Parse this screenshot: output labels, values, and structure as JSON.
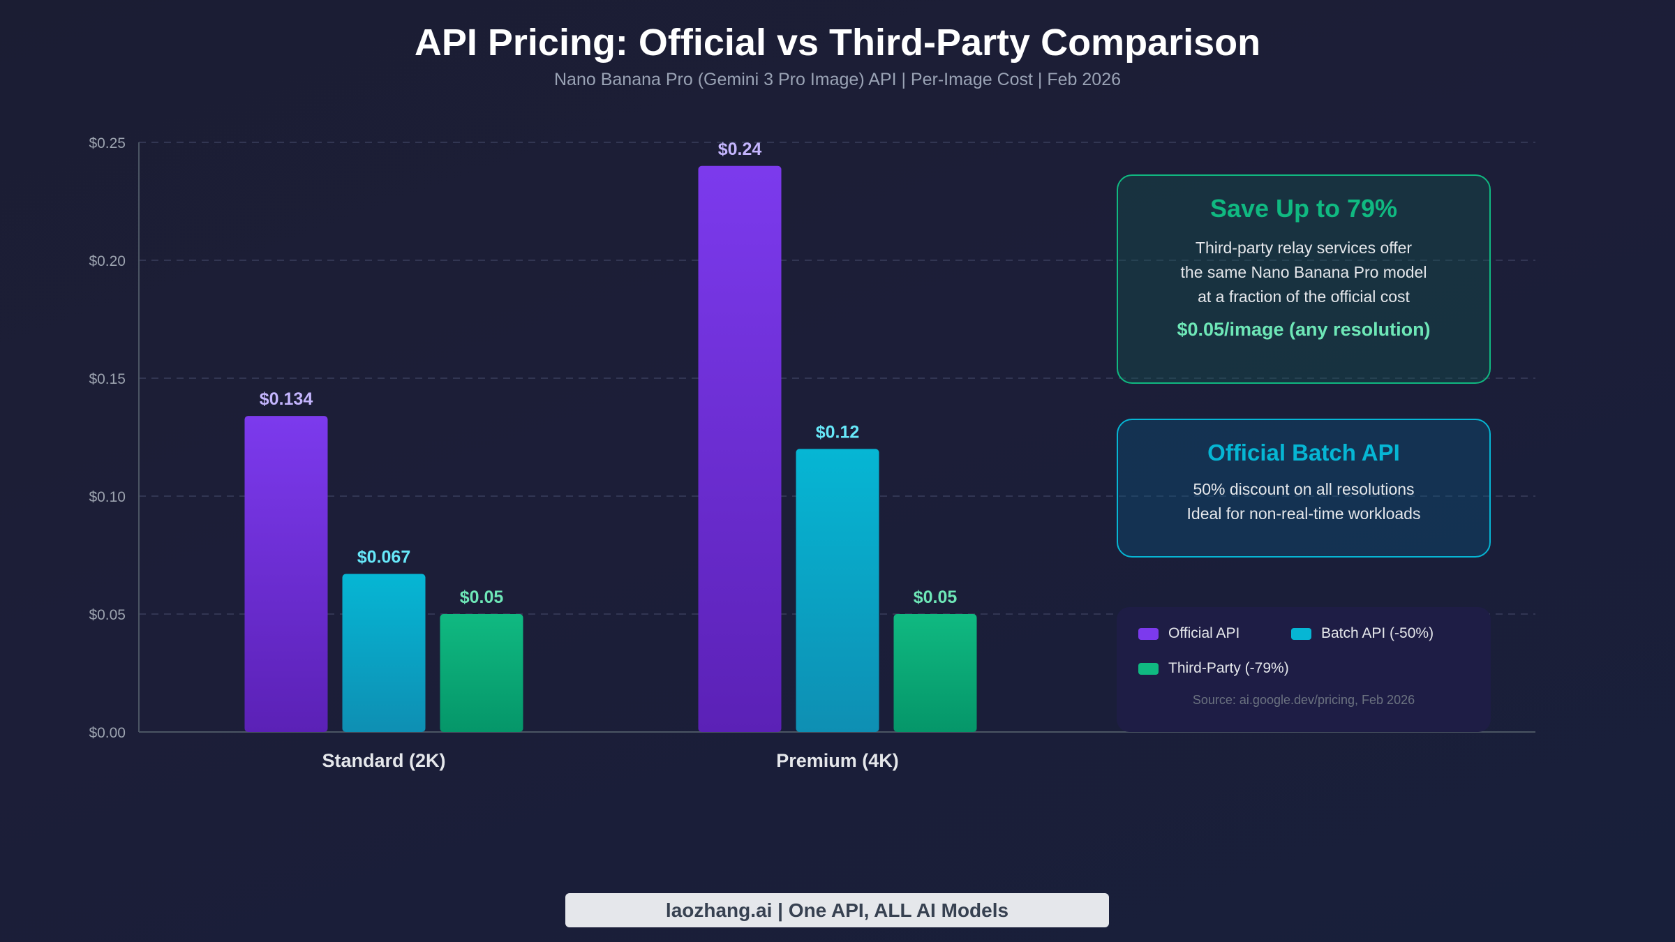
{
  "chart_data": {
    "type": "bar",
    "title": "API Pricing: Official vs Third-Party Comparison",
    "subtitle": "Nano Banana Pro (Gemini 3 Pro Image) API | Per-Image Cost | Feb 2026",
    "categories": [
      "Standard (2K)",
      "Premium (4K)"
    ],
    "series": [
      {
        "name": "Official API",
        "values": [
          0.134,
          0.24
        ],
        "labels": [
          "$0.134",
          "$0.24"
        ],
        "color": "#7c3aed",
        "label_color": "#c4b5fd"
      },
      {
        "name": "Batch API (-50%)",
        "values": [
          0.067,
          0.12
        ],
        "labels": [
          "$0.067",
          "$0.12"
        ],
        "color": "#06b6d4",
        "label_color": "#67e8f9"
      },
      {
        "name": "Third-Party (-79%)",
        "values": [
          0.05,
          0.05
        ],
        "labels": [
          "$0.05",
          "$0.05"
        ],
        "color": "#10b981",
        "label_color": "#6ee7b7"
      }
    ],
    "ylim": [
      0,
      0.25
    ],
    "yticks": [
      0,
      0.05,
      0.1,
      0.15,
      0.2,
      0.25
    ],
    "ytick_labels": [
      "$0.00",
      "$0.05",
      "$0.10",
      "$0.15",
      "$0.20",
      "$0.25"
    ],
    "grid": true,
    "legend_position": "bottom-right"
  },
  "callouts": {
    "save": {
      "title": "Save Up to 79%",
      "lines": [
        "Third-party relay services offer",
        "the same Nano Banana Pro model",
        "at a fraction of the official cost"
      ],
      "price": "$0.05/image (any resolution)"
    },
    "batch": {
      "title": "Official Batch API",
      "lines": [
        "50% discount on all resolutions",
        "Ideal for non-real-time workloads"
      ]
    }
  },
  "legend": {
    "source": "Source: ai.google.dev/pricing, Feb 2026"
  },
  "footer": "laozhang.ai | One API, ALL AI Models"
}
